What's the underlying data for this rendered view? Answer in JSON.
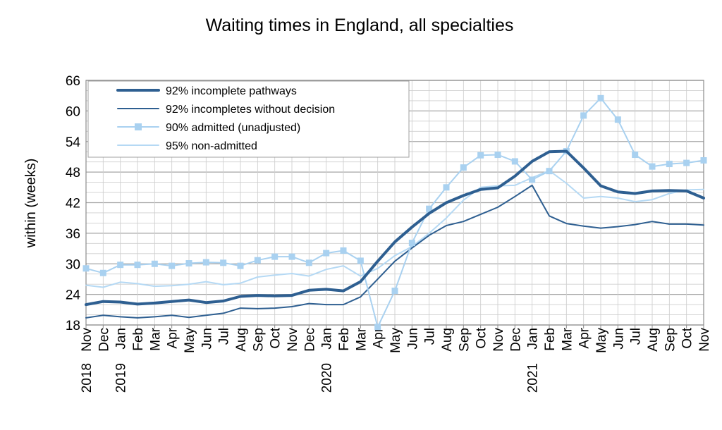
{
  "chart_data": {
    "type": "line",
    "title": "Waiting times in England, all specialties",
    "xlabel": "",
    "ylabel": "within  (weeks)",
    "ylim": [
      18,
      66
    ],
    "yticks": [
      18,
      24,
      30,
      36,
      42,
      48,
      54,
      60,
      66
    ],
    "grid": true,
    "legend_position": "top-left",
    "categories": [
      "Nov",
      "Dec",
      "Jan",
      "Feb",
      "Mar",
      "Apr",
      "May",
      "Jun",
      "Jul",
      "Aug",
      "Sep",
      "Oct",
      "Nov",
      "Dec",
      "Jan",
      "Feb",
      "Mar",
      "Apr",
      "May",
      "Jun",
      "Jul",
      "Aug",
      "Sep",
      "Oct",
      "Nov",
      "Dec",
      "Jan",
      "Feb",
      "Mar",
      "Apr",
      "May",
      "Jun",
      "Jul",
      "Aug",
      "Sep",
      "Oct",
      "Nov"
    ],
    "year_labels": [
      {
        "index": 0,
        "label": "2018"
      },
      {
        "index": 2,
        "label": "2019"
      },
      {
        "index": 14,
        "label": "2020"
      },
      {
        "index": 26,
        "label": "2021"
      }
    ],
    "series": [
      {
        "name": "92% incomplete pathways",
        "color": "#2e5f91",
        "width": 4,
        "marker": "none",
        "values": [
          22.0,
          22.6,
          22.5,
          22.1,
          22.3,
          22.6,
          22.9,
          22.4,
          22.7,
          23.6,
          23.8,
          23.7,
          23.8,
          24.8,
          25.0,
          24.7,
          26.5,
          30.5,
          34.3,
          37.2,
          39.9,
          42.0,
          43.4,
          44.6,
          44.9,
          47.2,
          50.1,
          52.0,
          52.1,
          48.8,
          45.3,
          44.1,
          43.8,
          44.3,
          44.4,
          44.3,
          42.9
        ]
      },
      {
        "name": "92% incompletes without decision",
        "color": "#2e5f91",
        "width": 2,
        "marker": "none",
        "values": [
          19.4,
          19.9,
          19.6,
          19.4,
          19.6,
          19.9,
          19.5,
          19.9,
          20.3,
          21.3,
          21.2,
          21.3,
          21.6,
          22.2,
          22.0,
          22.0,
          23.5,
          27.0,
          30.5,
          33.1,
          35.6,
          37.5,
          38.3,
          39.7,
          41.1,
          43.2,
          45.4,
          39.4,
          37.9,
          37.4,
          37.0,
          37.3,
          37.7,
          38.3,
          37.8,
          37.8,
          37.6
        ]
      },
      {
        "name": "90% admitted (unadjusted)",
        "color": "#a9d1f0",
        "width": 2,
        "marker": "square",
        "values": [
          29.1,
          28.2,
          29.8,
          29.8,
          30.0,
          29.6,
          30.1,
          30.3,
          30.2,
          29.6,
          30.7,
          31.4,
          31.4,
          30.2,
          32.1,
          32.6,
          30.6,
          17.6,
          24.7,
          34.1,
          40.8,
          45.0,
          48.9,
          51.3,
          51.4,
          50.1,
          46.5,
          48.2,
          52.1,
          59.1,
          62.5,
          58.3,
          51.4,
          49.1,
          49.6,
          49.8,
          50.3
        ]
      },
      {
        "name": "95% non-admitted",
        "color": "#b5d9f4",
        "width": 2,
        "marker": "none",
        "values": [
          25.8,
          25.4,
          26.4,
          26.1,
          25.6,
          25.7,
          26.0,
          26.5,
          25.9,
          26.2,
          27.4,
          27.8,
          28.1,
          27.6,
          28.9,
          29.6,
          27.6,
          29.1,
          31.6,
          33.4,
          36.0,
          39.0,
          42.5,
          45.0,
          45.3,
          45.4,
          46.9,
          48.3,
          45.8,
          42.9,
          43.2,
          42.9,
          42.2,
          42.6,
          43.8,
          44.5,
          44.6
        ]
      }
    ]
  }
}
